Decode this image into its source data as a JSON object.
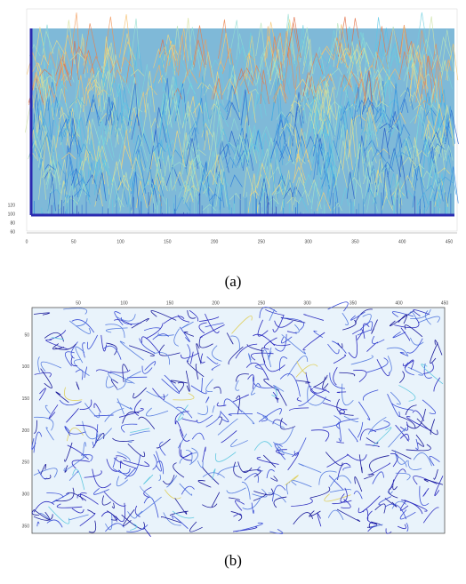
{
  "figures": [
    {
      "caption": "(a)",
      "x_ticks": [
        "0",
        "50",
        "100",
        "150",
        "200",
        "250",
        "300",
        "350",
        "400",
        "450"
      ],
      "z_ticks": [
        "120",
        "100",
        "80",
        "60"
      ]
    },
    {
      "caption": "(b)",
      "x_ticks": [
        "50",
        "100",
        "150",
        "200",
        "250",
        "300",
        "350",
        "400",
        "450"
      ],
      "y_ticks": [
        "50",
        "100",
        "150",
        "200",
        "250",
        "300",
        "350"
      ]
    }
  ]
}
